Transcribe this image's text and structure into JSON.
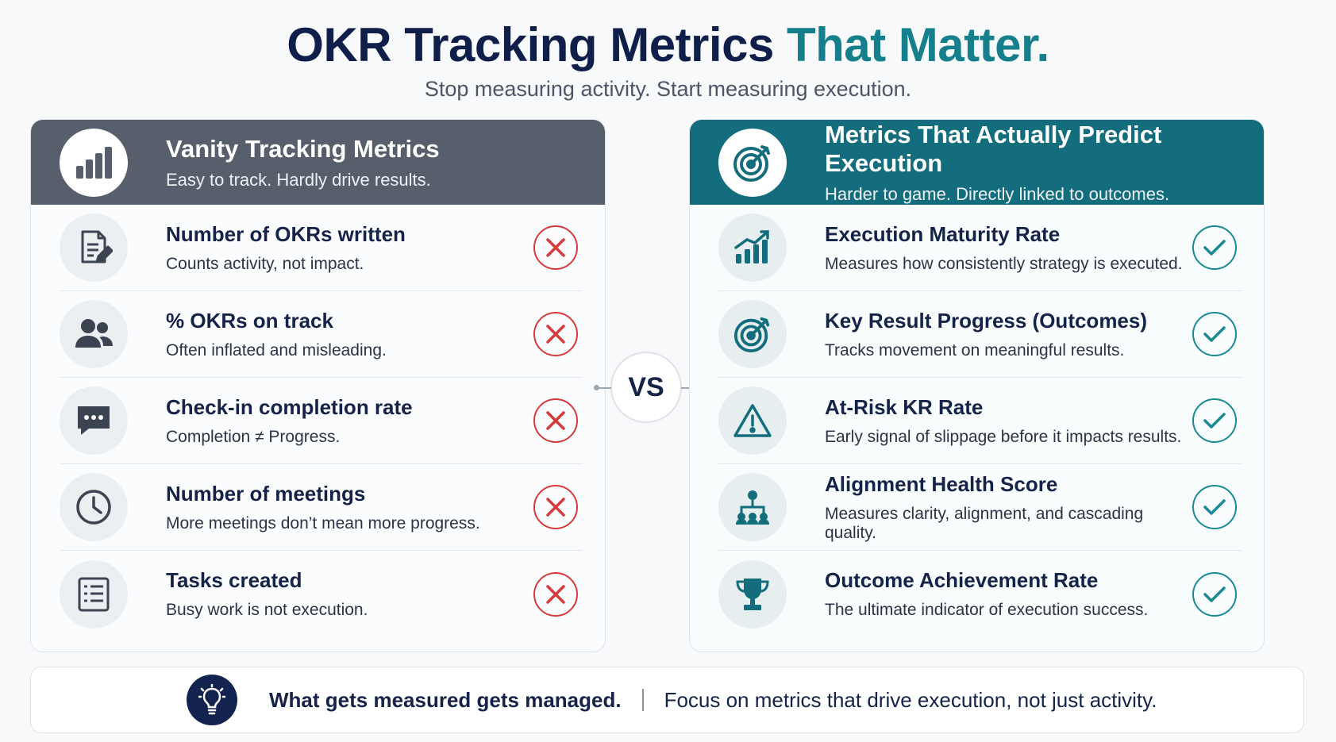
{
  "header": {
    "title_main": "OKR Tracking Metrics",
    "title_accent": "That Matter.",
    "subtitle": "Stop measuring activity. Start measuring execution."
  },
  "left_panel": {
    "title": "Vanity Tracking Metrics",
    "subtitle": "Easy to track. Hardly drive results.",
    "icon": "bar-chart-icon",
    "items": [
      {
        "title": "Number of OKRs written",
        "desc": "Counts activity, not impact.",
        "icon": "document-edit-icon",
        "status": "x-icon"
      },
      {
        "title": "% OKRs on track",
        "desc": "Often inflated and misleading.",
        "icon": "users-icon",
        "status": "x-icon"
      },
      {
        "title": "Check-in completion rate",
        "desc": "Completion ≠ Progress.",
        "icon": "chat-bubble-icon",
        "status": "x-icon"
      },
      {
        "title": "Number of meetings",
        "desc": "More meetings don’t mean more progress.",
        "icon": "clock-icon",
        "status": "x-icon"
      },
      {
        "title": "Tasks created",
        "desc": "Busy work is not execution.",
        "icon": "checklist-icon",
        "status": "x-icon"
      }
    ]
  },
  "vs_label": "VS",
  "right_panel": {
    "title": "Metrics That Actually Predict Execution",
    "subtitle": "Harder to game. Directly linked to outcomes.",
    "icon": "target-icon",
    "items": [
      {
        "title": "Execution Maturity Rate",
        "desc": "Measures how consistently strategy is executed.",
        "icon": "growth-chart-icon",
        "status": "check-icon"
      },
      {
        "title": "Key Result Progress (Outcomes)",
        "desc": "Tracks movement on meaningful results.",
        "icon": "target-icon",
        "status": "check-icon"
      },
      {
        "title": "At-Risk KR Rate",
        "desc": "Early signal of slippage before it impacts results.",
        "icon": "warning-icon",
        "status": "check-icon"
      },
      {
        "title": "Alignment Health Score",
        "desc": "Measures clarity, alignment, and cascading quality.",
        "icon": "org-chart-icon",
        "status": "check-icon"
      },
      {
        "title": "Outcome Achievement Rate",
        "desc": "The ultimate indicator of execution success.",
        "icon": "trophy-icon",
        "status": "check-icon"
      }
    ]
  },
  "footer": {
    "main": "What gets measured gets managed.",
    "sub": "Focus on metrics that drive execution, not just activity.",
    "icon": "lightbulb-icon"
  },
  "colors": {
    "navy": "#0f1f4a",
    "teal": "#157f8c",
    "gray_header": "#575f6c",
    "teal_header": "#136d7c",
    "bad": "#d63a3a",
    "good": "#1a8a94"
  }
}
